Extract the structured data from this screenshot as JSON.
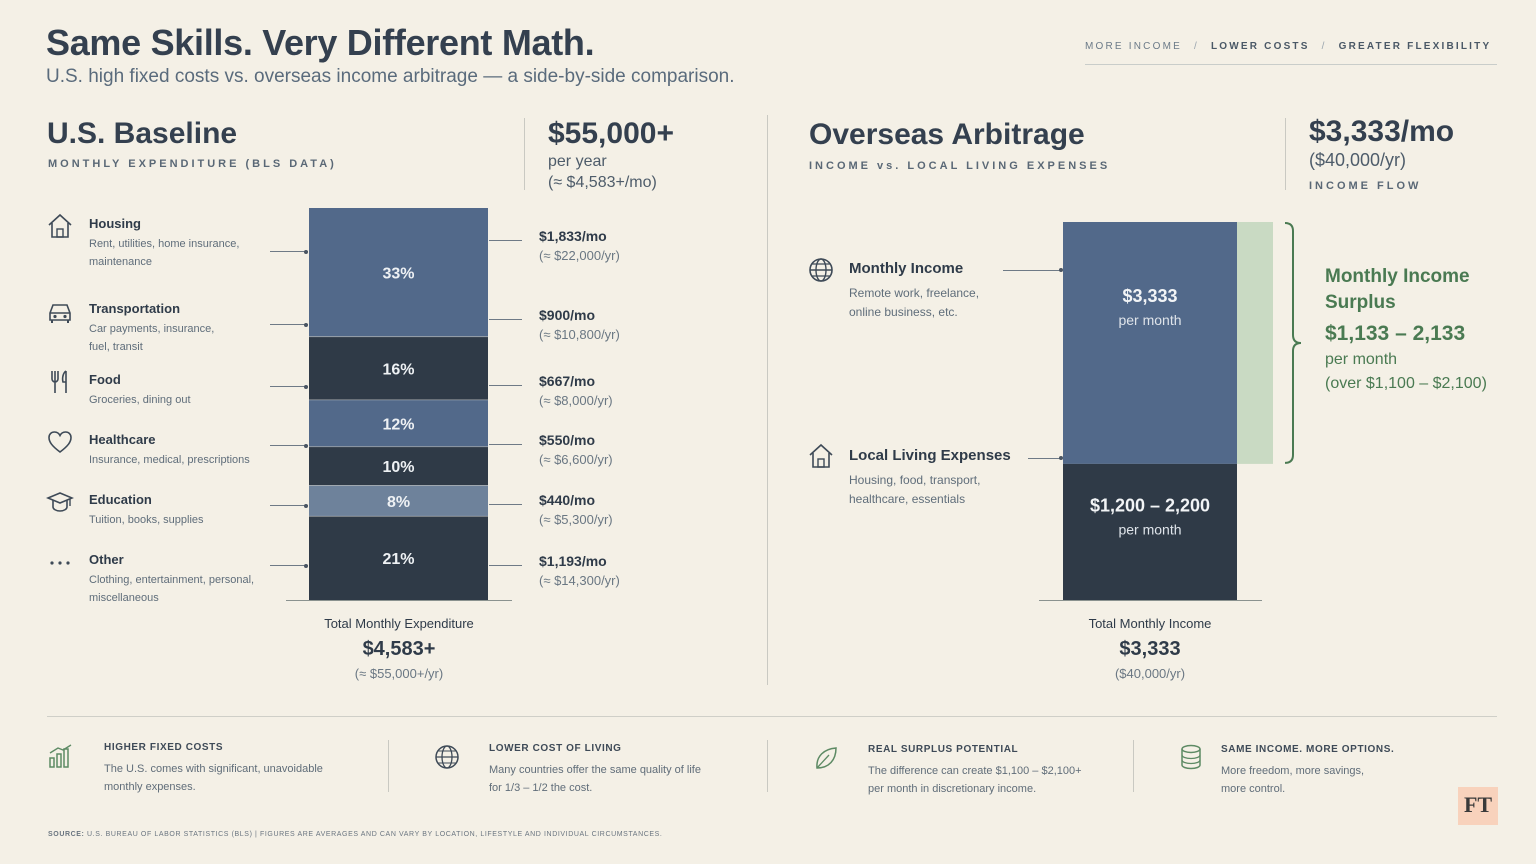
{
  "header": {
    "title": "Same Skills. Very Different Math.",
    "subtitle": "U.S. high fixed costs vs. overseas income arbitrage — a side-by-side comparison.",
    "nav": [
      "MORE INCOME",
      "LOWER COSTS",
      "GREATER FLEXIBILITY"
    ]
  },
  "us": {
    "title": "U.S. Baseline",
    "caption": "MONTHLY EXPENDITURE (BLS DATA)",
    "annual": "$55,000+",
    "annual_unit": "per year",
    "annual_monthly": "(≈ $4,583+/mo)",
    "total_label": "Total Monthly Expenditure",
    "total_value": "$4,583+",
    "total_annual": "(≈ $55,000+/yr)"
  },
  "overseas": {
    "title": "Overseas Arbitrage",
    "caption": "INCOME vs. LOCAL LIVING EXPENSES",
    "monthly": "$3,333/mo",
    "annual": "($40,000/yr)",
    "flow_label": "INCOME FLOW",
    "income_name": "Monthly Income",
    "income_desc": [
      "Remote work, freelance,",
      "online business, etc."
    ],
    "expense_name": "Local Living Expenses",
    "expense_desc": [
      "Housing, food, transport,",
      "healthcare, essentials"
    ],
    "surplus_title": [
      "Monthly Income",
      "Surplus"
    ],
    "surplus_value": "$1,133 – 2,133",
    "surplus_unit": "per month",
    "surplus_note": "(over $1,100 – $2,100)",
    "total_label": "Total Monthly Income",
    "total_value": "$3,333",
    "total_annual": "($40,000/yr)"
  },
  "chart_data": [
    {
      "type": "bar",
      "stacked": true,
      "categories": [
        "Housing",
        "Transportation",
        "Food",
        "Healthcare",
        "Education",
        "Other"
      ],
      "percent_labels": [
        "33%",
        "16%",
        "12%",
        "10%",
        "8%",
        "21%"
      ],
      "values_monthly": [
        1833,
        900,
        667,
        550,
        440,
        1193
      ],
      "descriptions": [
        [
          "Rent, utilities, home insurance,",
          "maintenance"
        ],
        [
          "Car payments, insurance,",
          "fuel, transit"
        ],
        [
          "Groceries, dining out"
        ],
        [
          "Insurance, medical, prescriptions"
        ],
        [
          "Tuition, books, supplies"
        ],
        [
          "Clothing, entertainment, personal,",
          "miscellaneous"
        ]
      ],
      "monthly_labels": [
        "$1,833/mo",
        "$900/mo",
        "$667/mo",
        "$550/mo",
        "$440/mo",
        "$1,193/mo"
      ],
      "annual_labels": [
        "(≈ $22,000/yr)",
        "(≈ $10,800/yr)",
        "(≈ $8,000/yr)",
        "(≈ $6,600/yr)",
        "(≈ $5,300/yr)",
        "(≈ $14,300/yr)"
      ],
      "icons": [
        "house-icon",
        "car-icon",
        "fork-knife-icon",
        "heart-icon",
        "graduation-cap-icon",
        "dots-icon"
      ],
      "colors": [
        "#52698a",
        "#2f3a47",
        "#52698a",
        "#2f3a47",
        "#6e829b",
        "#2f3a47"
      ]
    },
    {
      "type": "bar",
      "stacked": true,
      "categories": [
        "Monthly Income",
        "Local Living Expenses"
      ],
      "segments": [
        {
          "label": "$3,333",
          "sub": "per month",
          "value": 2133,
          "color": "#52698a"
        },
        {
          "label": "$1,200 – 2,200",
          "sub": "per month",
          "value": 1200,
          "color": "#2f3a47"
        }
      ],
      "surplus_range": [
        1133,
        2133
      ],
      "surplus_color": "#c9dac3",
      "bracket_color": "#4a7a52"
    }
  ],
  "footer": {
    "items": [
      {
        "icon": "bar-chart-icon",
        "title": "HIGHER FIXED COSTS",
        "desc": [
          "The U.S. comes with significant, unavoidable",
          "monthly expenses."
        ]
      },
      {
        "icon": "globe-icon",
        "title": "LOWER COST OF LIVING",
        "desc": [
          "Many countries offer the same quality of life",
          "for 1/3 – 1/2 the cost."
        ]
      },
      {
        "icon": "leaf-icon",
        "title": "REAL SURPLUS POTENTIAL",
        "desc": [
          "The difference can create $1,100 – $2,100+",
          "per month in discretionary income."
        ]
      },
      {
        "icon": "coins-icon",
        "title": "SAME INCOME. MORE OPTIONS.",
        "desc": [
          "More freedom, more savings,",
          "more control."
        ]
      }
    ],
    "source_label": "SOURCE:",
    "source": "U.S. BUREAU OF LABOR STATISTICS (BLS) | FIGURES ARE AVERAGES AND CAN VARY BY LOCATION, LIFESTYLE AND INDIVIDUAL CIRCUMSTANCES.",
    "logo": "FT"
  }
}
